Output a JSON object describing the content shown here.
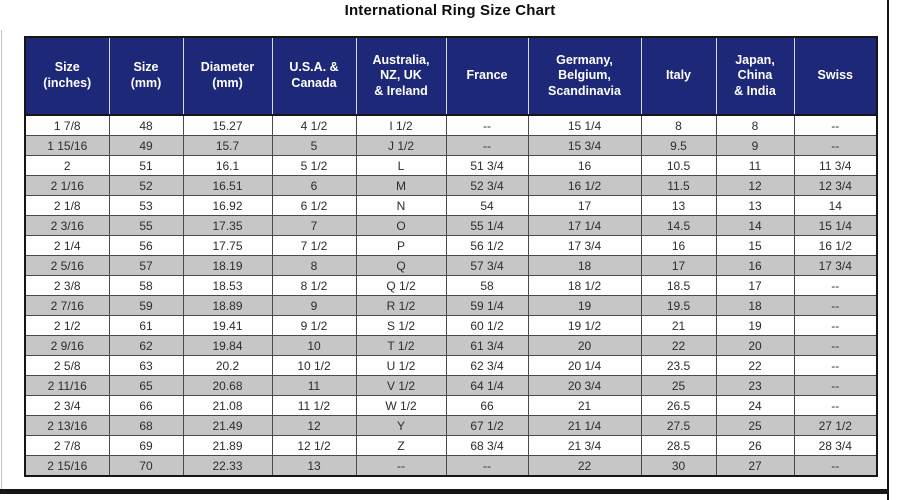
{
  "title": "International Ring Size Chart",
  "colors": {
    "header_bg": "#1e2878",
    "header_text": "#ffffff",
    "row_alt_bg": "#c6c6c6",
    "row_bg": "#fefefe",
    "grid": "#4a4a4a",
    "frame": "#161616"
  },
  "chart_data": {
    "type": "table",
    "title": "International Ring Size Chart",
    "columns": [
      "Size (inches)",
      "Size (mm)",
      "Diameter (mm)",
      "U.S.A. & Canada",
      "Australia, NZ, UK & Ireland",
      "France",
      "Germany, Belgium, Scandinavia",
      "Italy",
      "Japan, China & India",
      "Swiss"
    ],
    "header_display": [
      "Size\n(inches)",
      "Size\n(mm)",
      "Diameter\n(mm)",
      "U.S.A. &\nCanada",
      "Australia,\nNZ, UK\n& Ireland",
      "France",
      "Germany,\nBelgium,\nScandinavia",
      "Italy",
      "Japan,\nChina\n& India",
      "Swiss"
    ],
    "rows": [
      [
        "1 7/8",
        "48",
        "15.27",
        "4 1/2",
        "I 1/2",
        "--",
        "15 1/4",
        "8",
        "8",
        "--"
      ],
      [
        "1 15/16",
        "49",
        "15.7",
        "5",
        "J 1/2",
        "--",
        "15 3/4",
        "9.5",
        "9",
        "--"
      ],
      [
        "2",
        "51",
        "16.1",
        "5 1/2",
        "L",
        "51 3/4",
        "16",
        "10.5",
        "11",
        "11 3/4"
      ],
      [
        "2 1/16",
        "52",
        "16.51",
        "6",
        "M",
        "52 3/4",
        "16 1/2",
        "11.5",
        "12",
        "12 3/4"
      ],
      [
        "2 1/8",
        "53",
        "16.92",
        "6 1/2",
        "N",
        "54",
        "17",
        "13",
        "13",
        "14"
      ],
      [
        "2 3/16",
        "55",
        "17.35",
        "7",
        "O",
        "55 1/4",
        "17 1/4",
        "14.5",
        "14",
        "15 1/4"
      ],
      [
        "2 1/4",
        "56",
        "17.75",
        "7 1/2",
        "P",
        "56 1/2",
        "17 3/4",
        "16",
        "15",
        "16 1/2"
      ],
      [
        "2 5/16",
        "57",
        "18.19",
        "8",
        "Q",
        "57 3/4",
        "18",
        "17",
        "16",
        "17 3/4"
      ],
      [
        "2 3/8",
        "58",
        "18.53",
        "8 1/2",
        "Q 1/2",
        "58",
        "18 1/2",
        "18.5",
        "17",
        "--"
      ],
      [
        "2 7/16",
        "59",
        "18.89",
        "9",
        "R 1/2",
        "59 1/4",
        "19",
        "19.5",
        "18",
        "--"
      ],
      [
        "2 1/2",
        "61",
        "19.41",
        "9 1/2",
        "S 1/2",
        "60 1/2",
        "19 1/2",
        "21",
        "19",
        "--"
      ],
      [
        "2 9/16",
        "62",
        "19.84",
        "10",
        "T 1/2",
        "61 3/4",
        "20",
        "22",
        "20",
        "--"
      ],
      [
        "2 5/8",
        "63",
        "20.2",
        "10 1/2",
        "U 1/2",
        "62 3/4",
        "20 1/4",
        "23.5",
        "22",
        "--"
      ],
      [
        "2 11/16",
        "65",
        "20.68",
        "11",
        "V 1/2",
        "64 1/4",
        "20 3/4",
        "25",
        "23",
        "--"
      ],
      [
        "2 3/4",
        "66",
        "21.08",
        "11 1/2",
        "W 1/2",
        "66",
        "21",
        "26.5",
        "24",
        "--"
      ],
      [
        "2 13/16",
        "68",
        "21.49",
        "12",
        "Y",
        "67 1/2",
        "21 1/4",
        "27.5",
        "25",
        "27 1/2"
      ],
      [
        "2 7/8",
        "69",
        "21.89",
        "12 1/2",
        "Z",
        "68 3/4",
        "21 3/4",
        "28.5",
        "26",
        "28 3/4"
      ],
      [
        "2 15/16",
        "70",
        "22.33",
        "13",
        "--",
        "--",
        "22",
        "30",
        "27",
        "--"
      ]
    ]
  }
}
